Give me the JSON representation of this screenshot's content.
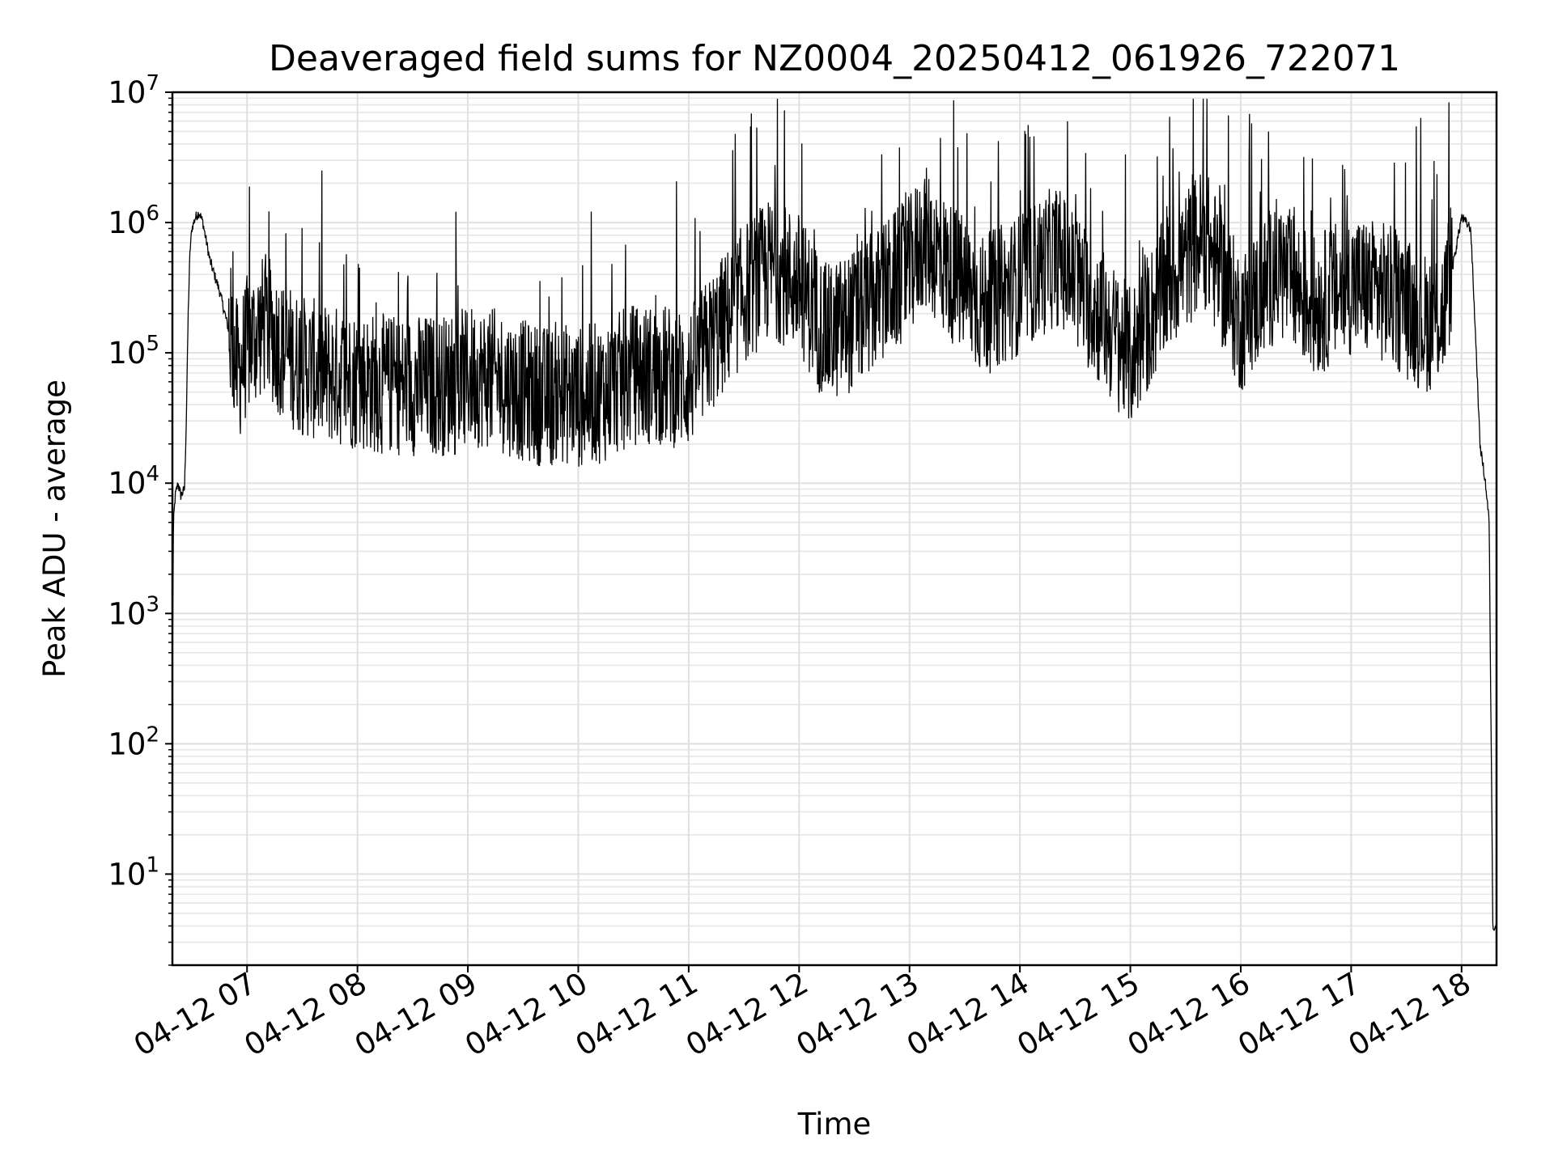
{
  "chart_data": {
    "type": "line",
    "title": "Deaveraged field sums for NZ0004_20250412_061926_722071",
    "xlabel": "Time",
    "ylabel": "Peak ADU - average",
    "yscale": "log",
    "ylim": [
      2,
      10000000
    ],
    "xlim": [
      "2025-04-12 06:19:26",
      "2025-04-12 18:19:00"
    ],
    "grid": true,
    "line_color": "#000000",
    "x_ticks": [
      {
        "x": "2025-04-12 07:00",
        "label": "04-12 07"
      },
      {
        "x": "2025-04-12 08:00",
        "label": "04-12 08"
      },
      {
        "x": "2025-04-12 09:00",
        "label": "04-12 09"
      },
      {
        "x": "2025-04-12 10:00",
        "label": "04-12 10"
      },
      {
        "x": "2025-04-12 11:00",
        "label": "04-12 11"
      },
      {
        "x": "2025-04-12 12:00",
        "label": "04-12 12"
      },
      {
        "x": "2025-04-12 13:00",
        "label": "04-12 13"
      },
      {
        "x": "2025-04-12 14:00",
        "label": "04-12 14"
      },
      {
        "x": "2025-04-12 15:00",
        "label": "04-12 15"
      },
      {
        "x": "2025-04-12 16:00",
        "label": "04-12 16"
      },
      {
        "x": "2025-04-12 17:00",
        "label": "04-12 17"
      },
      {
        "x": "2025-04-12 18:00",
        "label": "04-12 18"
      }
    ],
    "y_ticks": [
      {
        "y": 10,
        "base": "10",
        "exp": "1"
      },
      {
        "y": 100,
        "base": "10",
        "exp": "2"
      },
      {
        "y": 1000,
        "base": "10",
        "exp": "3"
      },
      {
        "y": 10000,
        "base": "10",
        "exp": "4"
      },
      {
        "y": 100000,
        "base": "10",
        "exp": "5"
      },
      {
        "y": 1000000,
        "base": "10",
        "exp": "6"
      },
      {
        "y": 10000000,
        "base": "10",
        "exp": "7"
      }
    ],
    "series": [
      {
        "x": [
          "2025-04-12 06:19:30",
          "2025-04-12 06:20:00",
          "2025-04-12 06:21:00",
          "2025-04-12 06:22:30",
          "2025-04-12 06:24:00",
          "2025-04-12 06:26:00",
          "2025-04-12 06:27:00",
          "2025-04-12 06:28:00",
          "2025-04-12 06:29:00",
          "2025-04-12 06:30:00",
          "2025-04-12 06:32:00",
          "2025-04-12 06:34:00",
          "2025-04-12 06:36:00",
          "2025-04-12 06:38:00",
          "2025-04-12 06:40:00",
          "2025-04-12 06:45:00",
          "2025-04-12 06:50:00",
          "2025-04-12 06:55:00",
          "2025-04-12 07:00:00",
          "2025-04-12 07:10:00",
          "2025-04-12 07:20:00",
          "2025-04-12 07:30:00",
          "2025-04-12 07:45:00",
          "2025-04-12 08:00:00",
          "2025-04-12 08:15:00",
          "2025-04-12 08:30:00",
          "2025-04-12 08:45:00",
          "2025-04-12 08:58:00",
          "2025-04-12 09:00:00",
          "2025-04-12 09:15:00",
          "2025-04-12 09:30:00",
          "2025-04-12 09:45:00",
          "2025-04-12 09:48:00",
          "2025-04-12 10:00:00",
          "2025-04-12 10:15:00",
          "2025-04-12 10:20:00",
          "2025-04-12 10:30:00",
          "2025-04-12 10:45:00",
          "2025-04-12 11:00:00",
          "2025-04-12 11:15:00",
          "2025-04-12 11:30:00",
          "2025-04-12 11:45:00",
          "2025-04-12 12:00:00",
          "2025-04-12 12:15:00",
          "2025-04-12 12:30:00",
          "2025-04-12 12:45:00",
          "2025-04-12 13:00:00",
          "2025-04-12 13:08:00",
          "2025-04-12 13:20:00",
          "2025-04-12 13:40:00",
          "2025-04-12 14:00:00",
          "2025-04-12 14:20:00",
          "2025-04-12 14:40:00",
          "2025-04-12 15:00:00",
          "2025-04-12 15:20:00",
          "2025-04-12 15:40:00",
          "2025-04-12 16:00:00",
          "2025-04-12 16:20:00",
          "2025-04-12 16:40:00",
          "2025-04-12 17:00:00",
          "2025-04-12 17:20:00",
          "2025-04-12 17:40:00",
          "2025-04-12 17:50:00",
          "2025-04-12 18:00:00",
          "2025-04-12 18:05:00",
          "2025-04-12 18:08:00",
          "2025-04-12 18:10:00",
          "2025-04-12 18:13:00",
          "2025-04-12 18:15:00",
          "2025-04-12 18:17:00",
          "2025-04-12 18:19:00"
        ],
        "y": [
          500,
          5000,
          8000,
          10000,
          8000,
          9000,
          30000,
          200000,
          600000,
          900000,
          1100000,
          1200000,
          1000000,
          700000,
          500000,
          300000,
          150000,
          60000,
          100000,
          150000,
          90000,
          70000,
          60000,
          55000,
          50000,
          50000,
          50000,
          50000,
          60000,
          55000,
          45000,
          40000,
          45000,
          40000,
          45000,
          50000,
          60000,
          60000,
          55000,
          120000,
          250000,
          400000,
          300000,
          120000,
          160000,
          250000,
          400000,
          700000,
          400000,
          200000,
          300000,
          500000,
          200000,
          80000,
          300000,
          700000,
          150000,
          400000,
          200000,
          300000,
          250000,
          150000,
          180000,
          1100000,
          900000,
          100000,
          20000,
          10000,
          5000,
          4,
          4
        ]
      }
    ]
  }
}
